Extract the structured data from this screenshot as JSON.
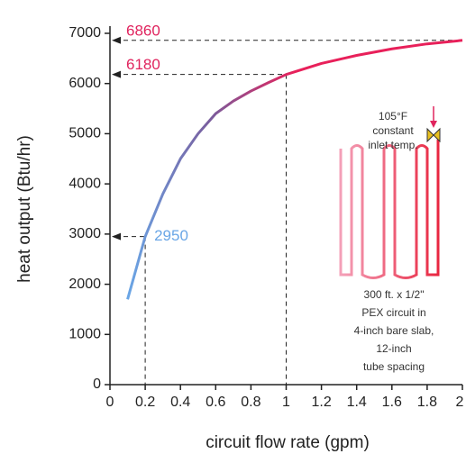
{
  "chart_data": {
    "type": "line",
    "xlabel": "circuit flow rate (gpm)",
    "ylabel": "heat output (Btu/hr)",
    "x": [
      0.1,
      0.2,
      0.3,
      0.4,
      0.5,
      0.6,
      0.7,
      0.8,
      0.9,
      1,
      1.2,
      1.4,
      1.6,
      1.8,
      2
    ],
    "values": [
      1700,
      2950,
      3800,
      4500,
      5000,
      5400,
      5650,
      5850,
      6020,
      6180,
      6400,
      6560,
      6690,
      6790,
      6860
    ],
    "gradient": [
      "#6aa6e6",
      "#7a5c9c",
      "#e8205a"
    ],
    "xlim": [
      0,
      2
    ],
    "xticks": [
      0,
      0.2,
      0.4,
      0.6,
      0.8,
      1,
      1.2,
      1.4,
      1.6,
      1.8,
      2
    ],
    "ylim": [
      0,
      7000
    ],
    "yticks": [
      0,
      1000,
      2000,
      3000,
      4000,
      5000,
      6000,
      7000
    ],
    "annotations": [
      {
        "x": 2,
        "y": 6860,
        "color": "#e0245e"
      },
      {
        "x": 1,
        "y": 6180,
        "color": "#e0245e"
      },
      {
        "x": 0.2,
        "y": 2950,
        "color": "#6aa6e6"
      }
    ],
    "inset": {
      "inlet_text": [
        "105°F",
        "constant",
        "inlet temp."
      ],
      "circuit_text": [
        "300 ft. x 1/2\"",
        "PEX circuit in",
        "4-inch bare slab,",
        "12-inch",
        "tube spacing"
      ]
    }
  }
}
